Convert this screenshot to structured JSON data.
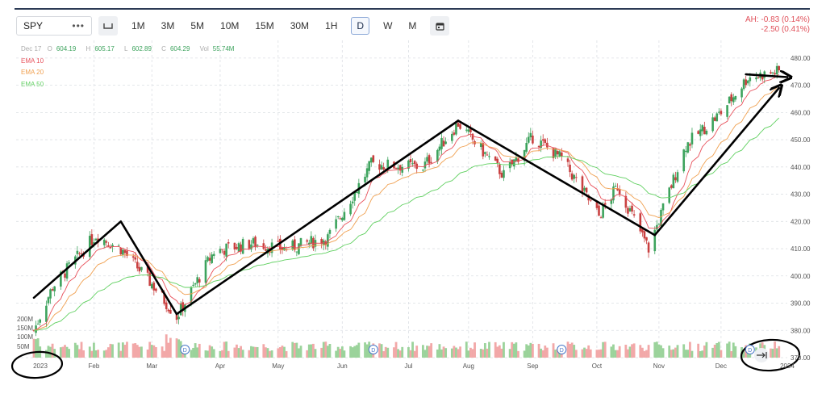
{
  "toolbar": {
    "symbol": "SPY",
    "more_icon": "ellipsis-icon",
    "chart_type_icon": "candle-type-icon",
    "calendar_icon": "calendar-icon",
    "timeframes": [
      "1M",
      "3M",
      "5M",
      "10M",
      "15M",
      "30M",
      "1H",
      "D",
      "W",
      "M"
    ],
    "active_timeframe": "D"
  },
  "after_hours": {
    "line1": "AH: -0.83 (0.14%)",
    "line2": "-2.50 (0.41%)"
  },
  "legend": {
    "date": "Dec 17",
    "open_label": "O",
    "open": "604.19",
    "high_label": "H",
    "high": "605.17",
    "low_label": "L",
    "low": "602.89",
    "close_label": "C",
    "close": "604.29",
    "vol_label": "Vol",
    "vol": "55.74M",
    "ema10": "EMA 10",
    "ema20": "EMA 20",
    "ema50": "EMA 50"
  },
  "colors": {
    "up": "#3da35d",
    "down": "#c94040",
    "vol_up": "#9bd39b",
    "vol_down": "#f2a8a8",
    "ema10": "#e8505a",
    "ema20": "#f0a050",
    "ema50": "#60d060",
    "annotation": "#000000"
  },
  "scroll_icon": "scroll-to-end-icon",
  "chart_data": {
    "type": "candlestick",
    "ylim": [
      370,
      485
    ],
    "y_ticks": [
      "480.00",
      "470.00",
      "460.00",
      "450.00",
      "440.00",
      "430.00",
      "420.00",
      "410.00",
      "400.00",
      "390.00",
      "380.00",
      "370.00"
    ],
    "x_ticks": [
      "2023",
      "Feb",
      "Mar",
      "Apr",
      "May",
      "Jun",
      "Jul",
      "Aug",
      "Sep",
      "Oct",
      "Nov",
      "Dec",
      "2024"
    ],
    "volume_ticks": [
      "200M",
      "150M",
      "100M",
      "50M"
    ],
    "dividend_markers": [
      "D",
      "D",
      "D",
      "D"
    ],
    "grid": true,
    "close_anchors": [
      {
        "x": "2023-01-03",
        "y": 380
      },
      {
        "x": "2023-01-12",
        "y": 396
      },
      {
        "x": "2023-02-02",
        "y": 415
      },
      {
        "x": "2023-02-14",
        "y": 410
      },
      {
        "x": "2023-03-01",
        "y": 397
      },
      {
        "x": "2023-03-13",
        "y": 385
      },
      {
        "x": "2023-03-31",
        "y": 409
      },
      {
        "x": "2023-04-18",
        "y": 412
      },
      {
        "x": "2023-05-05",
        "y": 410
      },
      {
        "x": "2023-05-25",
        "y": 414
      },
      {
        "x": "2023-06-15",
        "y": 441
      },
      {
        "x": "2023-07-10",
        "y": 440
      },
      {
        "x": "2023-07-27",
        "y": 456
      },
      {
        "x": "2023-08-18",
        "y": 437
      },
      {
        "x": "2023-09-01",
        "y": 451
      },
      {
        "x": "2023-09-15",
        "y": 443
      },
      {
        "x": "2023-10-03",
        "y": 422
      },
      {
        "x": "2023-10-12",
        "y": 433
      },
      {
        "x": "2023-10-27",
        "y": 410
      },
      {
        "x": "2023-11-14",
        "y": 448
      },
      {
        "x": "2023-12-01",
        "y": 460
      },
      {
        "x": "2023-12-14",
        "y": 473
      },
      {
        "x": "2023-12-29",
        "y": 475
      }
    ],
    "annotations": [
      {
        "type": "trend_line",
        "points": [
          {
            "x": "2023-01-03",
            "y": 392
          },
          {
            "x": "2023-02-14",
            "y": 420
          },
          {
            "x": "2023-03-13",
            "y": 386
          }
        ]
      },
      {
        "type": "trend_line",
        "points": [
          {
            "x": "2023-03-13",
            "y": 386
          },
          {
            "x": "2023-07-27",
            "y": 457
          }
        ]
      },
      {
        "type": "trend_line",
        "points": [
          {
            "x": "2023-07-27",
            "y": 457
          },
          {
            "x": "2023-10-30",
            "y": 415
          }
        ]
      },
      {
        "type": "arrow",
        "points": [
          {
            "x": "2023-10-30",
            "y": 415
          },
          {
            "x": "2023-12-29",
            "y": 469
          }
        ]
      },
      {
        "type": "arrow",
        "points": [
          {
            "x": "2023-12-13",
            "y": 474
          },
          {
            "x": "2024-01-02",
            "y": 473
          }
        ]
      }
    ]
  }
}
